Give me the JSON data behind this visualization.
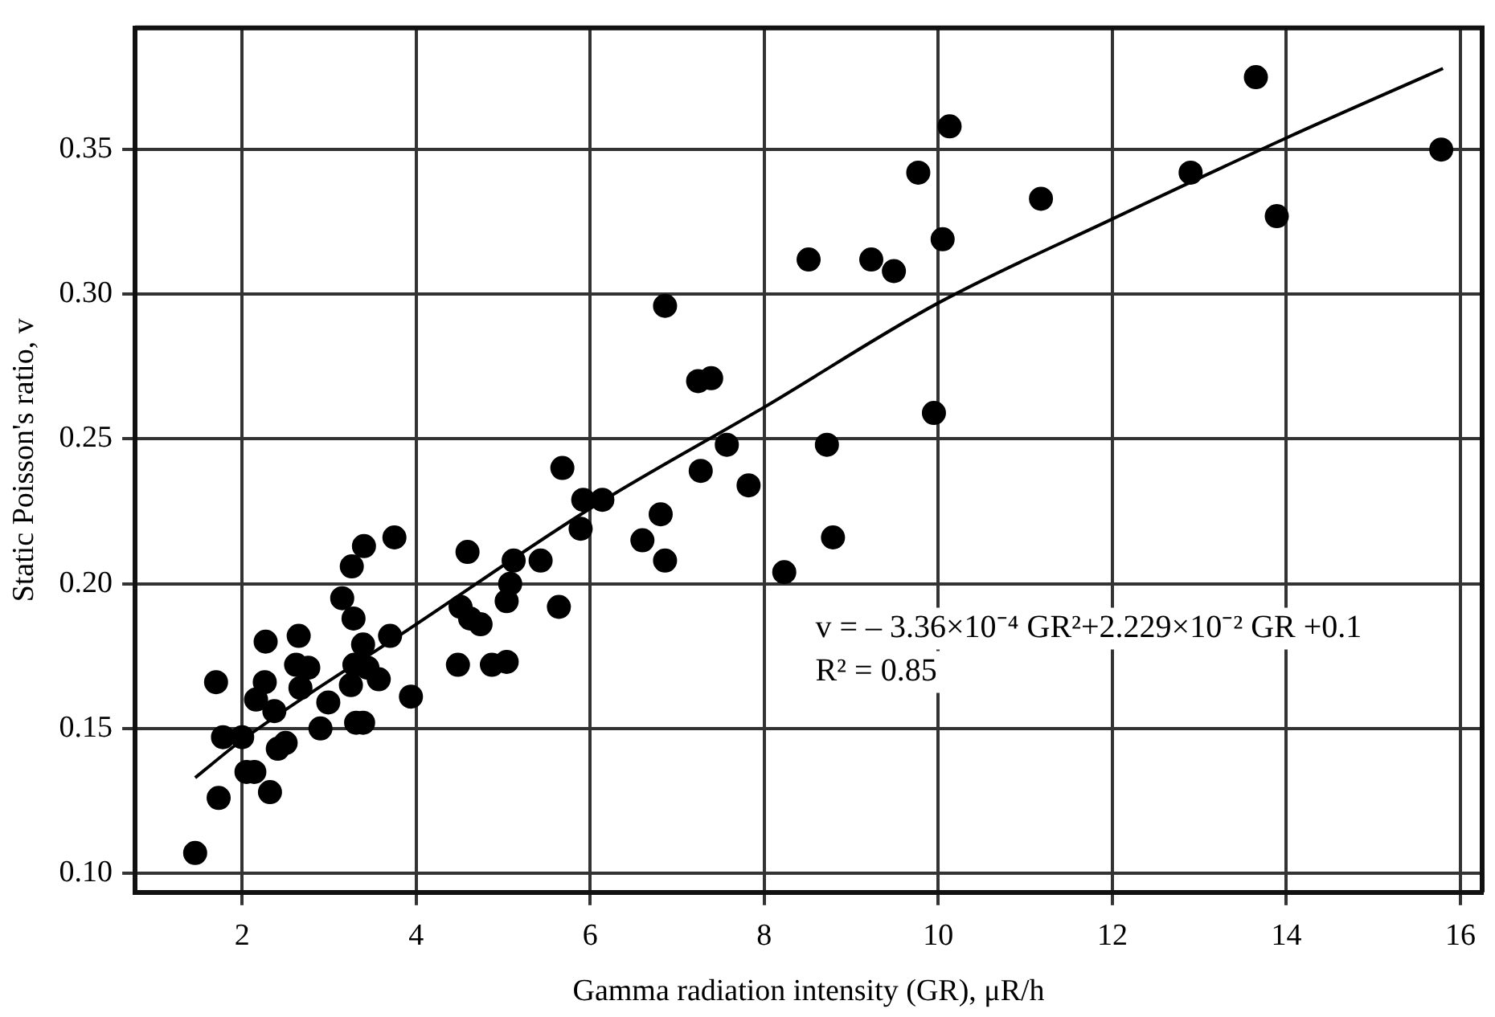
{
  "chart_data": {
    "type": "scatter",
    "xlabel": "Gamma radiation intensity (GR), μR/h",
    "ylabel": "Static Poisson's ratio, v",
    "xlim": [
      0.77,
      16.25
    ],
    "xticks": [
      2,
      4,
      6,
      8,
      10,
      12,
      14,
      16
    ],
    "ylim": [
      0.0934,
      0.392
    ],
    "yticks": [
      {
        "value": 0.1,
        "label": "0.10"
      },
      0.15,
      {
        "value": 0.2,
        "label": "0.20"
      },
      0.25,
      {
        "value": 0.3,
        "label": "0.30"
      },
      0.35
    ],
    "grid": true,
    "legend": false,
    "annotations": [
      "v = – 3.36×10⁻⁴ GR²+2.229×10⁻² GR +0.1",
      "R² = 0.85"
    ],
    "series": [
      {
        "marker": "circle",
        "color": "#000000",
        "x": [
          1.46,
          1.7,
          1.78,
          1.73,
          2.0,
          2.05,
          2.14,
          2.32,
          2.16,
          2.26,
          2.27,
          2.37,
          2.41,
          2.5,
          2.65,
          2.62,
          2.76,
          2.67,
          2.9,
          2.99,
          3.15,
          3.26,
          3.4,
          3.28,
          3.39,
          3.25,
          3.29,
          3.44,
          3.57,
          3.31,
          3.39,
          3.7,
          3.75,
          3.94,
          4.59,
          4.51,
          4.62,
          4.74,
          4.48,
          5.12,
          5.43,
          5.08,
          5.04,
          5.64,
          4.87,
          5.04,
          5.89,
          5.92,
          6.14,
          6.6,
          6.81,
          6.86,
          8.23,
          8.79,
          5.68,
          7.27,
          7.57,
          7.82,
          8.72,
          9.95,
          6.86,
          7.24,
          7.39,
          8.51,
          9.23,
          9.49,
          10.05,
          9.77,
          10.13,
          11.18,
          12.9,
          13.65,
          13.89,
          15.78
        ],
        "values": [
          0.107,
          0.166,
          0.147,
          0.126,
          0.147,
          0.135,
          0.135,
          0.128,
          0.16,
          0.166,
          0.18,
          0.156,
          0.143,
          0.145,
          0.182,
          0.172,
          0.171,
          0.164,
          0.15,
          0.159,
          0.195,
          0.206,
          0.213,
          0.188,
          0.179,
          0.165,
          0.172,
          0.171,
          0.167,
          0.152,
          0.152,
          0.182,
          0.216,
          0.161,
          0.211,
          0.192,
          0.188,
          0.186,
          0.172,
          0.208,
          0.208,
          0.2,
          0.194,
          0.192,
          0.172,
          0.173,
          0.219,
          0.229,
          0.229,
          0.215,
          0.224,
          0.208,
          0.204,
          0.216,
          0.24,
          0.239,
          0.248,
          0.234,
          0.248,
          0.259,
          0.296,
          0.27,
          0.271,
          0.312,
          0.312,
          0.308,
          0.319,
          0.342,
          0.358,
          0.333,
          0.342,
          0.375,
          0.327,
          0.35
        ]
      },
      {
        "type": "line",
        "marker": "none",
        "color": "#000000",
        "x": [
          1.46,
          2,
          4,
          6,
          8,
          10,
          12,
          14,
          15.8
        ],
        "values": [
          0.133,
          0.146,
          0.186,
          0.226,
          0.261,
          0.297,
          0.326,
          0.354,
          0.378
        ]
      }
    ]
  }
}
